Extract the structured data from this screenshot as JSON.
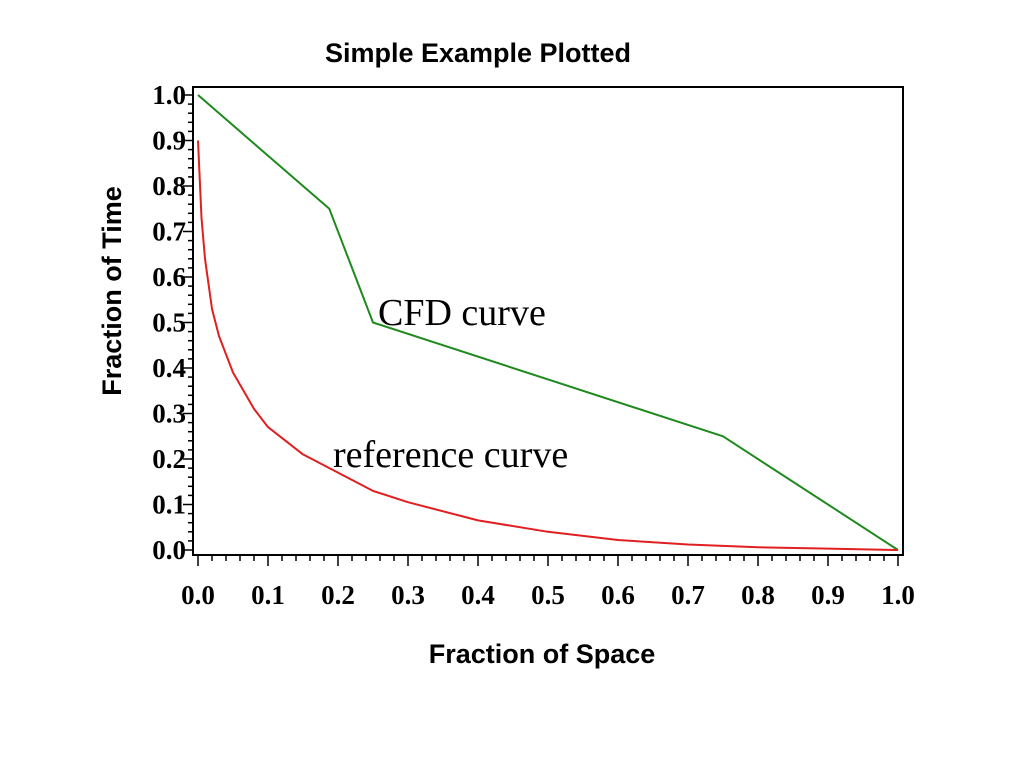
{
  "chart_data": {
    "type": "line",
    "title": "Simple Example Plotted",
    "xlabel": "Fraction of Space",
    "ylabel": "Fraction of Time",
    "xlim": [
      0.0,
      1.0
    ],
    "ylim": [
      0.0,
      1.0
    ],
    "grid": false,
    "x_ticks": [
      "0.0",
      "0.1",
      "0.2",
      "0.3",
      "0.4",
      "0.5",
      "0.6",
      "0.7",
      "0.8",
      "0.9",
      "1.0"
    ],
    "y_ticks": [
      "0.0",
      "0.1",
      "0.2",
      "0.3",
      "0.4",
      "0.5",
      "0.6",
      "0.7",
      "0.8",
      "0.9",
      "1.0"
    ],
    "series": [
      {
        "name": "CFD curve",
        "color": "#1e8a1e",
        "x": [
          0.0,
          0.1875,
          0.25,
          0.75,
          1.0
        ],
        "y": [
          1.0,
          0.75,
          0.5,
          0.25,
          0.0
        ]
      },
      {
        "name": "reference curve",
        "color": "#e02020",
        "x": [
          0.0,
          0.005,
          0.01,
          0.02,
          0.03,
          0.05,
          0.08,
          0.1,
          0.15,
          0.2,
          0.25,
          0.3,
          0.4,
          0.5,
          0.6,
          0.7,
          0.8,
          0.9,
          1.0
        ],
        "y": [
          0.9,
          0.73,
          0.64,
          0.53,
          0.47,
          0.39,
          0.31,
          0.27,
          0.21,
          0.17,
          0.13,
          0.105,
          0.065,
          0.04,
          0.022,
          0.012,
          0.006,
          0.003,
          0.0
        ]
      }
    ],
    "annotations": [
      "CFD curve",
      "reference curve"
    ]
  }
}
